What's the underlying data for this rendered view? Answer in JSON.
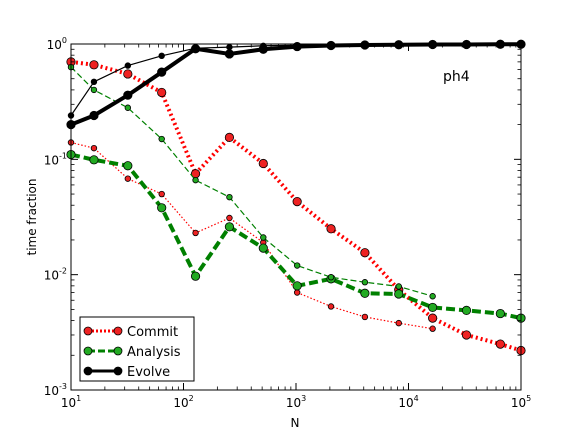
{
  "chart_data": {
    "type": "line",
    "annotation": "ph4",
    "xlabel": "N",
    "ylabel": "time fraction",
    "xscale": "log",
    "yscale": "log",
    "xlim": [
      10,
      100000
    ],
    "ylim": [
      0.001,
      1
    ],
    "x_ticks": [
      {
        "value": 10,
        "base": "10",
        "exp": "1"
      },
      {
        "value": 100,
        "base": "10",
        "exp": "2"
      },
      {
        "value": 1000,
        "base": "10",
        "exp": "3"
      },
      {
        "value": 10000,
        "base": "10",
        "exp": "4"
      },
      {
        "value": 100000,
        "base": "10",
        "exp": "5"
      }
    ],
    "y_ticks": [
      {
        "value": 0.001,
        "base": "10",
        "exp": "-3"
      },
      {
        "value": 0.01,
        "base": "10",
        "exp": "-2"
      },
      {
        "value": 0.1,
        "base": "10",
        "exp": "-1"
      },
      {
        "value": 1,
        "base": "10",
        "exp": "0"
      }
    ],
    "legend_position": "lower-left",
    "legend": [
      {
        "label": "Commit",
        "color": "#ff0000",
        "marker": "#ee2222",
        "style": "dotted"
      },
      {
        "label": "Analysis",
        "color": "#008000",
        "marker": "#22aa22",
        "style": "dashed"
      },
      {
        "label": "Evolve",
        "color": "#000000",
        "marker": "#000000",
        "style": "solid"
      }
    ],
    "series": [
      {
        "name": "Commit",
        "variant": "large",
        "color": "#ff0000",
        "marker": "#ee2222",
        "style": "dotted",
        "x": [
          10,
          16,
          32,
          64,
          128,
          256,
          512,
          1024,
          2048,
          4096,
          8192,
          16384,
          32768,
          65536,
          100000
        ],
        "y": [
          0.7,
          0.66,
          0.55,
          0.38,
          0.075,
          0.155,
          0.092,
          0.043,
          0.025,
          0.0155,
          0.0074,
          0.0042,
          0.003,
          0.0025,
          0.0022
        ]
      },
      {
        "name": "Commit",
        "variant": "small",
        "color": "#ff0000",
        "marker": "#ee2222",
        "style": "dotted",
        "x": [
          10,
          16,
          32,
          64,
          128,
          256,
          512,
          1024,
          2048,
          4096,
          8192,
          16384
        ],
        "y": [
          0.14,
          0.125,
          0.068,
          0.05,
          0.023,
          0.031,
          0.019,
          0.007,
          0.0053,
          0.0043,
          0.0038,
          0.0034
        ]
      },
      {
        "name": "Analysis",
        "variant": "large",
        "color": "#008000",
        "marker": "#22aa22",
        "style": "dashed",
        "x": [
          10,
          16,
          32,
          64,
          128,
          256,
          512,
          1024,
          2048,
          4096,
          8192,
          16384,
          32768,
          65536,
          100000
        ],
        "y": [
          0.11,
          0.099,
          0.088,
          0.038,
          0.0097,
          0.026,
          0.017,
          0.008,
          0.0092,
          0.0069,
          0.0068,
          0.0052,
          0.0049,
          0.0046,
          0.0042
        ]
      },
      {
        "name": "Analysis",
        "variant": "small",
        "color": "#008000",
        "marker": "#22aa22",
        "style": "dashed",
        "x": [
          10,
          16,
          32,
          64,
          128,
          256,
          512,
          1024,
          2048,
          4096,
          8192,
          16384
        ],
        "y": [
          0.63,
          0.4,
          0.28,
          0.15,
          0.066,
          0.047,
          0.021,
          0.012,
          0.0095,
          0.0086,
          0.0079,
          0.0065
        ]
      },
      {
        "name": "Evolve",
        "variant": "large",
        "color": "#000000",
        "marker": "#000000",
        "style": "solid",
        "x": [
          10,
          16,
          32,
          64,
          128,
          256,
          512,
          1024,
          2048,
          4096,
          8192,
          16384,
          32768,
          65536,
          100000
        ],
        "y": [
          0.2,
          0.24,
          0.36,
          0.57,
          0.91,
          0.82,
          0.9,
          0.95,
          0.97,
          0.98,
          0.985,
          0.99,
          0.99,
          0.995,
          0.995
        ]
      },
      {
        "name": "Evolve",
        "variant": "small",
        "color": "#000000",
        "marker": "#000000",
        "style": "solid",
        "x": [
          10,
          16,
          32,
          64,
          128,
          256,
          512,
          1024,
          2048,
          4096,
          8192,
          16384
        ],
        "y": [
          0.24,
          0.47,
          0.65,
          0.79,
          0.92,
          0.94,
          0.965,
          0.975,
          0.98,
          0.985,
          0.99,
          0.99
        ]
      }
    ]
  }
}
